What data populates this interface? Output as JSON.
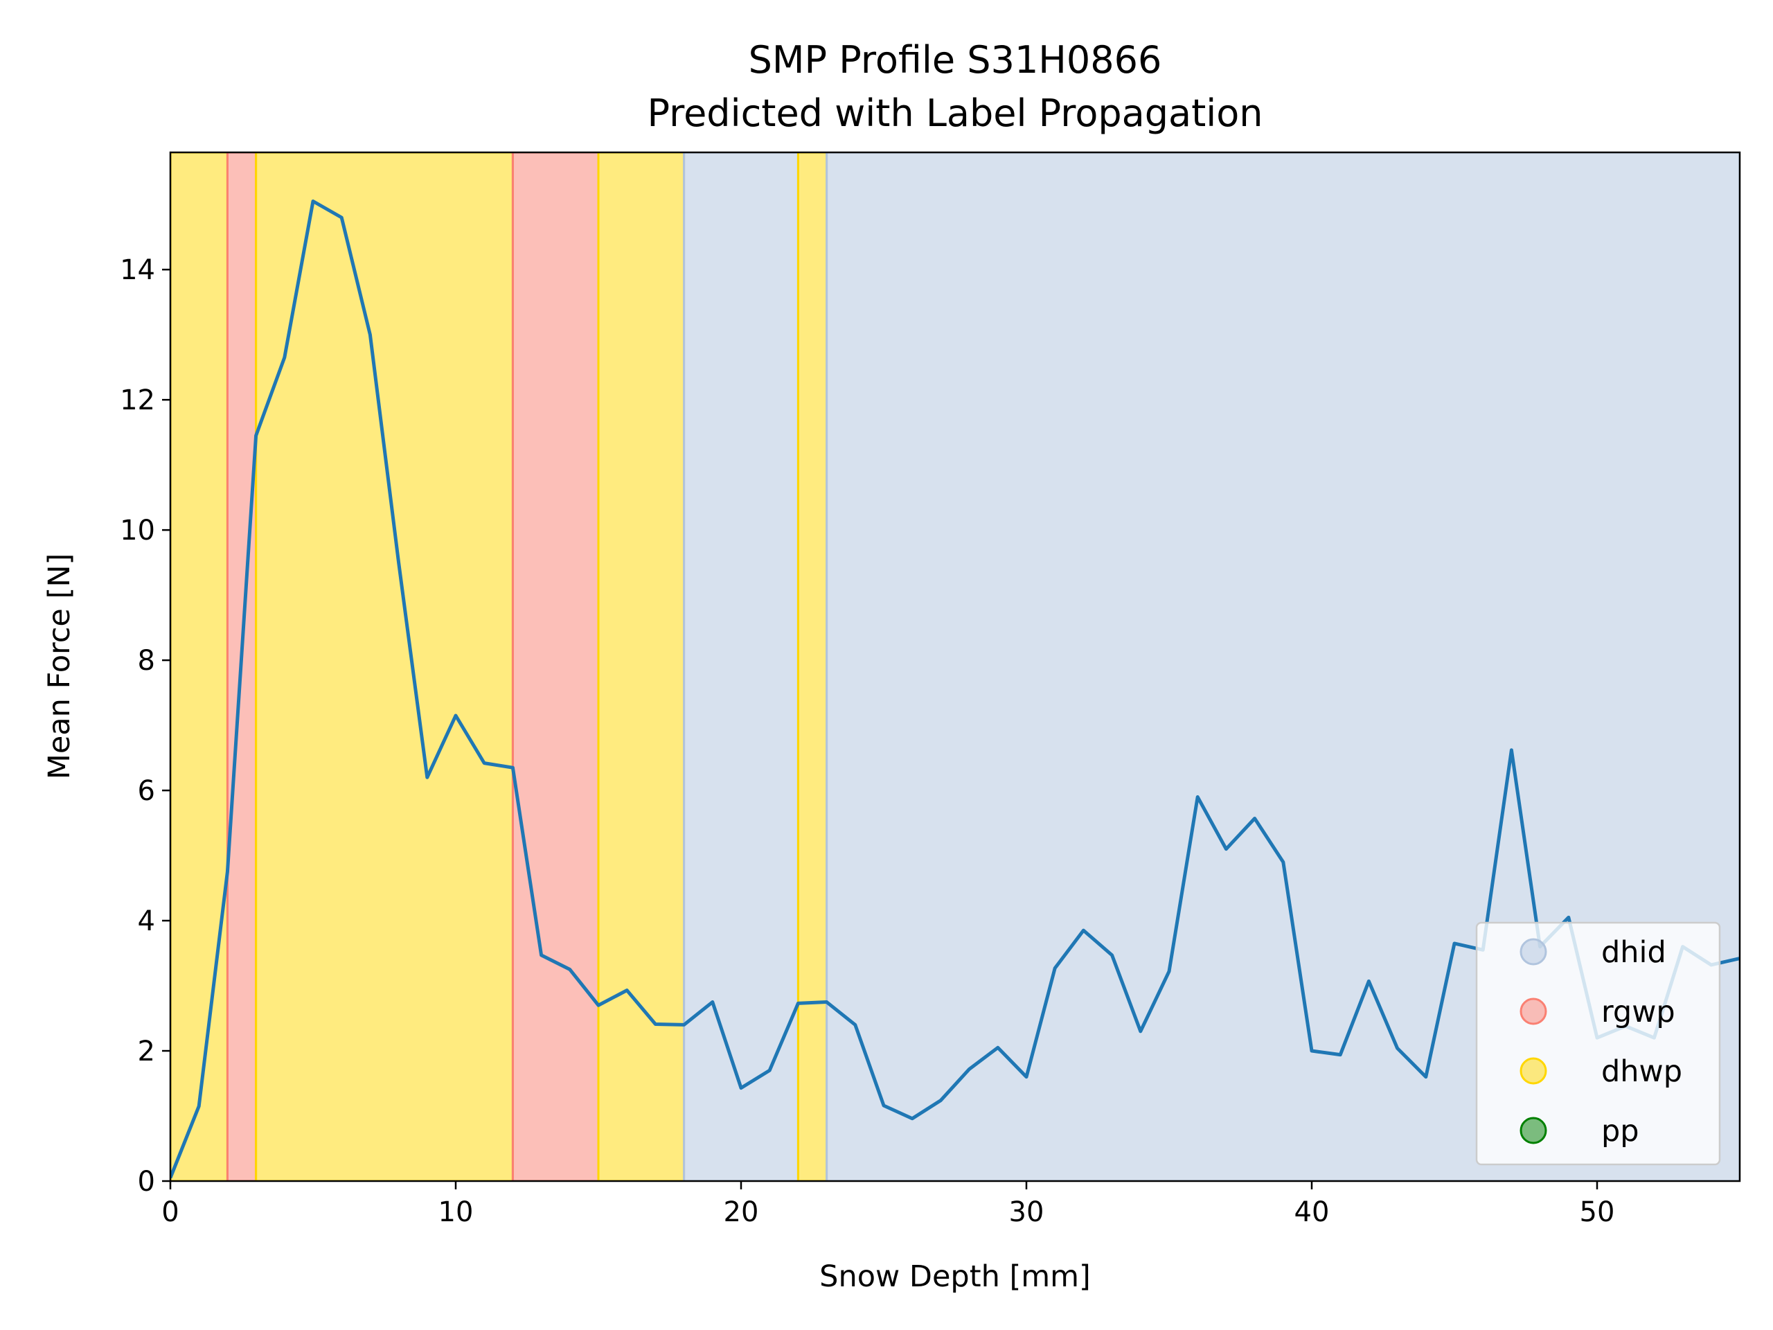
{
  "chart_data": {
    "type": "line",
    "title": "SMP Profile S31H0866",
    "subtitle": "Predicted with Label Propagation",
    "xlabel": "Snow Depth [mm]",
    "ylabel": "Mean Force [N]",
    "xlim": [
      0,
      55
    ],
    "ylim": [
      0,
      15.8
    ],
    "xticks": [
      0,
      10,
      20,
      30,
      40,
      50
    ],
    "yticks": [
      0,
      2,
      4,
      6,
      8,
      10,
      12,
      14
    ],
    "grid": false,
    "legend_position": "lower-right",
    "line_color": "#1f77b4",
    "classes": [
      {
        "name": "dhid",
        "color": "#b0c4de"
      },
      {
        "name": "rgwp",
        "color": "#fa8072"
      },
      {
        "name": "dhwp",
        "color": "#ffd700"
      },
      {
        "name": "pp",
        "color": "#008000"
      }
    ],
    "bands": [
      {
        "start": 0,
        "end": 2,
        "label": "dhwp"
      },
      {
        "start": 2,
        "end": 3,
        "label": "rgwp"
      },
      {
        "start": 3,
        "end": 12,
        "label": "dhwp"
      },
      {
        "start": 12,
        "end": 15,
        "label": "rgwp"
      },
      {
        "start": 15,
        "end": 18,
        "label": "dhwp"
      },
      {
        "start": 18,
        "end": 22,
        "label": "dhid"
      },
      {
        "start": 22,
        "end": 23,
        "label": "dhwp"
      },
      {
        "start": 23,
        "end": 55,
        "label": "dhid"
      }
    ],
    "series": [
      {
        "x": [
          0,
          1,
          2,
          3,
          4,
          5,
          6,
          7,
          8,
          9,
          10,
          11,
          12,
          13,
          14,
          15,
          16,
          17,
          18,
          19,
          20,
          21,
          22,
          23,
          24,
          25,
          26,
          27,
          28,
          29,
          30,
          31,
          32,
          33,
          34,
          35,
          36,
          37,
          38,
          39,
          40,
          41,
          42,
          43,
          44,
          45,
          46,
          47,
          48,
          49,
          50,
          51,
          52,
          53,
          54,
          55
        ],
        "y": [
          0.05,
          1.15,
          4.75,
          11.45,
          12.65,
          15.05,
          14.8,
          13.0,
          9.5,
          6.2,
          7.15,
          6.42,
          6.35,
          3.47,
          3.25,
          2.7,
          2.93,
          2.41,
          2.4,
          2.75,
          1.43,
          1.7,
          2.73,
          2.75,
          2.4,
          1.16,
          0.96,
          1.24,
          1.72,
          2.05,
          1.6,
          3.27,
          3.85,
          3.47,
          2.3,
          3.22,
          5.9,
          5.1,
          5.57,
          4.9,
          2.0,
          1.94,
          3.07,
          2.04,
          1.6,
          3.65,
          3.55,
          6.62,
          3.6,
          4.05,
          2.2,
          2.38,
          2.2,
          3.6,
          3.32,
          3.42
        ]
      }
    ]
  }
}
